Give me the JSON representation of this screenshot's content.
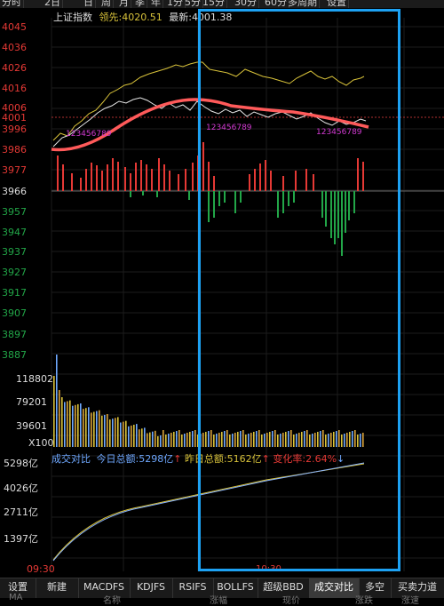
{
  "topbar": {
    "items": [
      "分时",
      "2日",
      "日",
      "周",
      "月",
      "季",
      "年",
      "1分",
      "5分",
      "15分",
      "30分",
      "60分",
      "多周期",
      "设置"
    ]
  },
  "info": {
    "title": "上证指数",
    "lead_label": "领先:",
    "lead_value": "4020.51",
    "latest_label": "最新:",
    "latest_value": "4001.38"
  },
  "price_axis": {
    "labels": [
      "4045",
      "4036",
      "4026",
      "4016",
      "4006",
      "4001",
      "3996",
      "3986",
      "3977",
      "3966",
      "3957",
      "3947",
      "3937",
      "3927",
      "3917",
      "3907",
      "3897",
      "3887"
    ]
  },
  "volume_axis": {
    "labels": [
      "118802",
      "79201",
      "39601",
      "X100"
    ]
  },
  "summary": {
    "label": "成交对比",
    "today_label": "今日总额:",
    "today_value": "5298亿",
    "yesterday_label": "昨日总额:",
    "yesterday_value": "5162亿",
    "change_label": "变化率:",
    "change_value": "2.64%"
  },
  "amount_axis": {
    "labels": [
      "5298亿",
      "4026亿",
      "2711亿",
      "1397亿"
    ]
  },
  "time_axis": {
    "start": "09:30",
    "marker": "10:30"
  },
  "signal_labels": {
    "group1": "123456789",
    "group2": "123456789",
    "group3": "123456789"
  },
  "bottom_tabs": [
    "设置",
    "新建",
    "MACDFS",
    "KDJFS",
    "RSIFS",
    "BOLLFS",
    "超级BBD",
    "成交对比",
    "多空",
    "买卖力道"
  ],
  "bottom_sub": [
    "MA",
    "名称",
    "涨幅",
    "现价",
    "涨跌",
    "涨速"
  ],
  "colors": {
    "up": "#e53935",
    "down": "#22a648",
    "price_line": "#e6e6e6",
    "avg_line": "#d8c23a",
    "ma_line": "#ff5a5a",
    "highlight": "#1da1f2",
    "amount_today": "#8ab4ff",
    "amount_yesterday": "#d8c23a"
  }
}
